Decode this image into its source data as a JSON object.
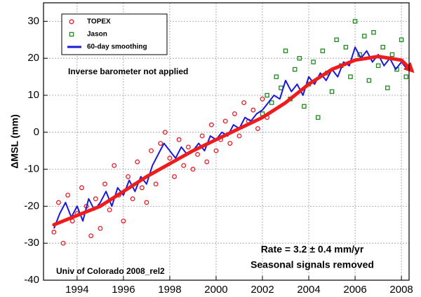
{
  "chart_data": {
    "type": "scatter",
    "y_label": "ΔMSL  (mm)",
    "annotations": [
      "Inverse barometer not applied",
      "Rate = 3.2 ± 0.4 mm/yr",
      "Seasonal signals removed",
      "Univ of Colorado 2008_rel2"
    ],
    "xlim": [
      1992.55,
      2008.33
    ],
    "xticks": [
      1994,
      1996,
      1998,
      2000,
      2002,
      2004,
      2006,
      2008
    ],
    "ylim": [
      -40,
      35
    ],
    "yticks": [
      -40,
      -30,
      -20,
      -10,
      0,
      10,
      20,
      30
    ],
    "grid": true,
    "legend": "upper left",
    "series": [
      {
        "name": "TOPEX",
        "color": "#e0202a",
        "marker": "circle",
        "x": [
          1993.0,
          1993.2,
          1993.4,
          1993.6,
          1993.8,
          1994.0,
          1994.2,
          1994.4,
          1994.6,
          1994.8,
          1995.0,
          1995.2,
          1995.4,
          1995.6,
          1995.8,
          1996.0,
          1996.2,
          1996.4,
          1996.6,
          1996.8,
          1997.0,
          1997.2,
          1997.4,
          1997.6,
          1997.8,
          1998.0,
          1998.2,
          1998.4,
          1998.6,
          1998.8,
          1999.0,
          1999.2,
          1999.4,
          1999.6,
          1999.8,
          2000.0,
          2000.2,
          2000.4,
          2000.6,
          2000.8,
          2001.0,
          2001.2,
          2001.4,
          2001.6,
          2001.8,
          2002.0,
          2002.2
        ],
        "values": [
          -27,
          -19,
          -30,
          -17,
          -24,
          -22,
          -15,
          -20,
          -28,
          -18,
          -26,
          -14,
          -21,
          -9,
          -17,
          -24,
          -12,
          -18,
          -8,
          -15,
          -19,
          -5,
          -14,
          -3,
          0,
          -7,
          -12,
          -2,
          -9,
          -4,
          -10,
          -6,
          -1,
          -8,
          2,
          -5,
          -2,
          3,
          -3,
          5,
          -1,
          8,
          3,
          6,
          1,
          9,
          4
        ]
      },
      {
        "name": "Jason",
        "color": "#1e8a1e",
        "marker": "square",
        "x": [
          2002.0,
          2002.2,
          2002.4,
          2002.6,
          2002.8,
          2003.0,
          2003.2,
          2003.4,
          2003.6,
          2003.8,
          2004.0,
          2004.2,
          2004.4,
          2004.6,
          2004.8,
          2005.0,
          2005.2,
          2005.4,
          2005.6,
          2005.8,
          2006.0,
          2006.2,
          2006.4,
          2006.6,
          2006.8,
          2007.0,
          2007.2,
          2007.4,
          2007.6,
          2007.8,
          2008.0,
          2008.2
        ],
        "values": [
          5,
          10,
          8,
          15,
          12,
          22,
          9,
          17,
          20,
          7,
          13,
          19,
          4,
          22,
          16,
          11,
          25,
          18,
          23,
          15,
          30,
          21,
          26,
          14,
          27,
          18,
          23,
          12,
          21,
          17,
          25,
          15
        ]
      },
      {
        "name": "60-day smoothing",
        "color": "#1a1ad8",
        "marker": "line",
        "x": [
          1993.0,
          1993.25,
          1993.5,
          1993.75,
          1994.0,
          1994.25,
          1994.5,
          1994.75,
          1995.0,
          1995.25,
          1995.5,
          1995.75,
          1996.0,
          1996.25,
          1996.5,
          1996.75,
          1997.0,
          1997.25,
          1997.5,
          1997.75,
          1998.0,
          1998.25,
          1998.5,
          1998.75,
          1999.0,
          1999.25,
          1999.5,
          1999.75,
          2000.0,
          2000.25,
          2000.5,
          2000.75,
          2001.0,
          2001.25,
          2001.5,
          2001.75,
          2002.0,
          2002.25,
          2002.5,
          2002.75,
          2003.0,
          2003.25,
          2003.5,
          2003.75,
          2004.0,
          2004.25,
          2004.5,
          2004.75,
          2005.0,
          2005.25,
          2005.5,
          2005.75,
          2006.0,
          2006.25,
          2006.5,
          2006.75,
          2007.0,
          2007.25,
          2007.5,
          2007.75,
          2008.0,
          2008.25
        ],
        "values": [
          -26,
          -22,
          -19,
          -23,
          -20,
          -24,
          -18,
          -21,
          -19,
          -16,
          -20,
          -15,
          -17,
          -13,
          -16,
          -12,
          -14,
          -9,
          -6,
          -3,
          -5,
          -7,
          -4,
          -6,
          -5,
          -3,
          -5,
          -1,
          -2,
          0,
          -1,
          2,
          1,
          4,
          3,
          5,
          6,
          8,
          10,
          9,
          14,
          11,
          13,
          10,
          15,
          13,
          16,
          14,
          17,
          15,
          19,
          18,
          23,
          20,
          22,
          19,
          21,
          18,
          20,
          17,
          19,
          17
        ]
      },
      {
        "color": "#ee1c1c",
        "marker": "trend",
        "x": [
          1993,
          1994,
          1995,
          1996,
          1997,
          1998,
          1999,
          2000,
          2001,
          2002,
          2003,
          2004,
          2005,
          2006,
          2007,
          2008,
          2008.4
        ],
        "values": [
          -25,
          -22.5,
          -20,
          -16,
          -12,
          -8.5,
          -5,
          -2,
          1,
          4,
          8,
          13,
          17,
          19.5,
          20.5,
          19.5,
          17
        ]
      }
    ]
  }
}
